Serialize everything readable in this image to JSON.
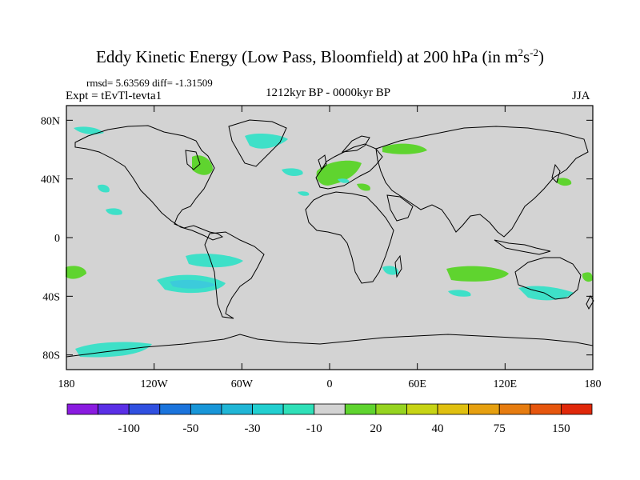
{
  "title": {
    "main": "Eddy Kinetic Energy (Low Pass, Bloomfield) at 200 hPa (in m",
    "sup1": "2",
    "mid": "s",
    "sup2": "-2",
    "end": ")"
  },
  "stats": "rmsd= 5.63569 diff= -1.31509",
  "experiment": "Expt = tEvTl-tevta1",
  "period": "1212kyr BP - 0000kyr BP",
  "season": "JJA",
  "map": {
    "lon_range": [
      -180,
      180
    ],
    "lat_range": [
      -90,
      90
    ],
    "x_ticks": [
      {
        "label": "180",
        "lon": -180
      },
      {
        "label": "120W",
        "lon": -120
      },
      {
        "label": "60W",
        "lon": -60
      },
      {
        "label": "0",
        "lon": 0
      },
      {
        "label": "60E",
        "lon": 60
      },
      {
        "label": "120E",
        "lon": 120
      },
      {
        "label": "180",
        "lon": 180
      }
    ],
    "y_ticks": [
      {
        "label": "80N",
        "lat": 80
      },
      {
        "label": "40N",
        "lat": 40
      },
      {
        "label": "0",
        "lat": 0
      },
      {
        "label": "40S",
        "lat": -40
      },
      {
        "label": "80S",
        "lat": -80
      }
    ],
    "colors": {
      "background": "#d3d3d3",
      "positive": "#5fd42f",
      "negative": "#3ee0c8",
      "negative_deep": "#3ccbdb",
      "coast": "#000000"
    }
  },
  "colorbar": {
    "colors": [
      "#8a1be0",
      "#5a2fe6",
      "#3050e0",
      "#1b74dc",
      "#1896d8",
      "#20b6d6",
      "#22cfd0",
      "#2fe0b8",
      "#d3d3d3",
      "#5fd42f",
      "#96d420",
      "#c7d415",
      "#e0c010",
      "#e6a010",
      "#e67c10",
      "#e6560e",
      "#e0280a"
    ],
    "labels": [
      {
        "text": "-100",
        "after_box": 2
      },
      {
        "text": "-50",
        "after_box": 4
      },
      {
        "text": "-30",
        "after_box": 6
      },
      {
        "text": "-10",
        "after_box": 8
      },
      {
        "text": "20",
        "after_box": 10
      },
      {
        "text": "40",
        "after_box": 12
      },
      {
        "text": "75",
        "after_box": 14
      },
      {
        "text": "150",
        "after_box": 16
      }
    ]
  }
}
